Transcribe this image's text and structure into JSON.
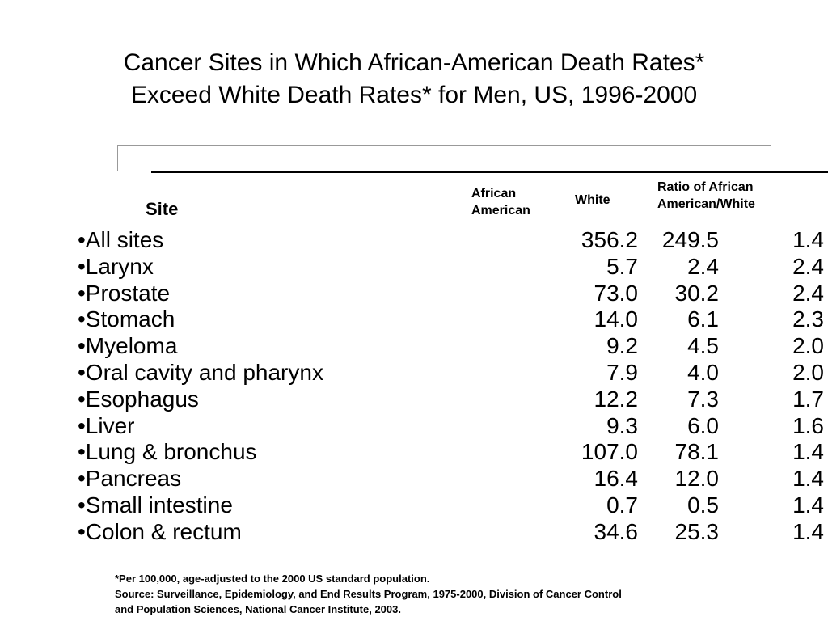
{
  "title": {
    "line1": "Cancer Sites in Which African-American  Death Rates*",
    "line2": "Exceed White Death Rates* for Men, US, 1996-2000"
  },
  "table": {
    "headers": {
      "site": "Site",
      "african_american_line1": "African",
      "african_american_line2": "American",
      "white": "White",
      "ratio_line1": "Ratio of  African",
      "ratio_line2": "American/White"
    },
    "rows": [
      {
        "site": "•All sites",
        "african_american": "356.2",
        "white": "249.5",
        "ratio": "1.4"
      },
      {
        "site": "•Larynx",
        "african_american": "5.7",
        "white": "2.4",
        "ratio": "2.4"
      },
      {
        "site": "•Prostate",
        "african_american": "73.0",
        "white": "30.2",
        "ratio": "2.4"
      },
      {
        "site": "•Stomach",
        "african_american": "14.0",
        "white": "6.1",
        "ratio": "2.3"
      },
      {
        "site": "•Myeloma",
        "african_american": "9.2",
        "white": "4.5",
        "ratio": "2.0"
      },
      {
        "site": "•Oral cavity and pharynx",
        "african_american": "7.9",
        "white": "4.0",
        "ratio": "2.0"
      },
      {
        "site": "•Esophagus",
        "african_american": "12.2",
        "white": "7.3",
        "ratio": "1.7"
      },
      {
        "site": "•Liver",
        "african_american": "9.3",
        "white": "6.0",
        "ratio": "1.6"
      },
      {
        "site": "•Lung & bronchus",
        "african_american": "107.0",
        "white": "78.1",
        "ratio": "1.4"
      },
      {
        "site": "•Pancreas",
        "african_american": "16.4",
        "white": "12.0",
        "ratio": "1.4"
      },
      {
        "site": "•Small intestine",
        "african_american": "0.7",
        "white": "0.5",
        "ratio": "1.4"
      },
      {
        "site": "•Colon & rectum",
        "african_american": "34.6",
        "white": "25.3",
        "ratio": "1.4"
      }
    ]
  },
  "footnote": {
    "line1": "*Per 100,000, age-adjusted to the 2000 US standard population.",
    "line2": "Source: Surveillance, Epidemiology, and End Results Program, 1975-2000, Division of Cancer Control",
    "line3": "and Population Sciences, National Cancer Institute, 2003."
  }
}
